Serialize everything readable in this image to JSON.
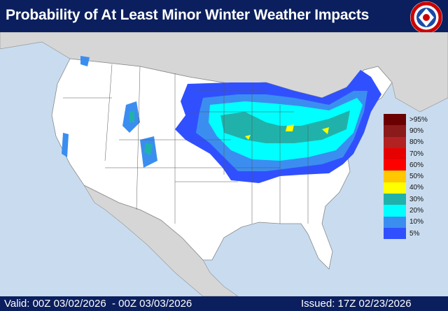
{
  "header": {
    "title": "Probability of At Least Minor Winter Weather Impacts",
    "logo": "NOAA National Weather Service"
  },
  "legend": {
    "items": [
      {
        "label": ">95%",
        "color": "#6b0000"
      },
      {
        "label": "90%",
        "color": "#8b1a1a"
      },
      {
        "label": "80%",
        "color": "#b22222"
      },
      {
        "label": "70%",
        "color": "#e60000"
      },
      {
        "label": "60%",
        "color": "#ff0000"
      },
      {
        "label": "50%",
        "color": "#ffc800"
      },
      {
        "label": "40%",
        "color": "#ffff00"
      },
      {
        "label": "30%",
        "color": "#20b2aa"
      },
      {
        "label": "20%",
        "color": "#00ffff"
      },
      {
        "label": "10%",
        "color": "#3b8ef0"
      },
      {
        "label": "5%",
        "color": "#3050ff"
      }
    ]
  },
  "footer": {
    "valid": "Valid: 00Z 03/02/2026  - 00Z 03/03/2026",
    "issued": "Issued: 17Z 02/23/2026"
  }
}
